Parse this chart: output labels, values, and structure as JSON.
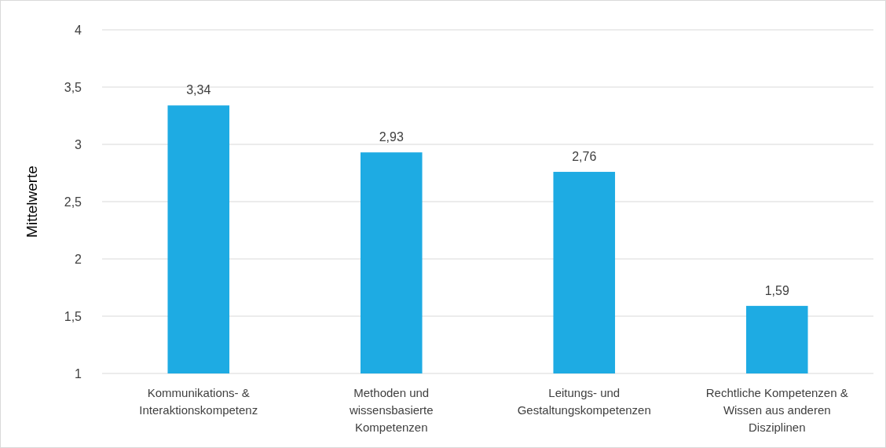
{
  "chart_data": {
    "type": "bar",
    "ylabel": "Mittelwerte",
    "categories": [
      "Kommunikations- &\nInteraktionskompetenz",
      "Methoden und\nwissensbasierte\nKompetenzen",
      "Leitungs- und\nGestaltungskompetenzen",
      "Rechtliche Kompetenzen &\nWissen aus anderen\nDisziplinen"
    ],
    "values": [
      3.34,
      2.93,
      2.76,
      1.59
    ],
    "value_labels": [
      "3,34",
      "2,93",
      "2,76",
      "1,59"
    ],
    "color": "#1eabe3",
    "ylim": [
      1,
      4
    ],
    "yticks": [
      1,
      {
        "value": 1.5,
        "label": "1,5"
      },
      2,
      {
        "value": 2.5,
        "label": "2,5"
      },
      3,
      {
        "value": 3.5,
        "label": "3,5"
      },
      4
    ],
    "grid": "y"
  }
}
